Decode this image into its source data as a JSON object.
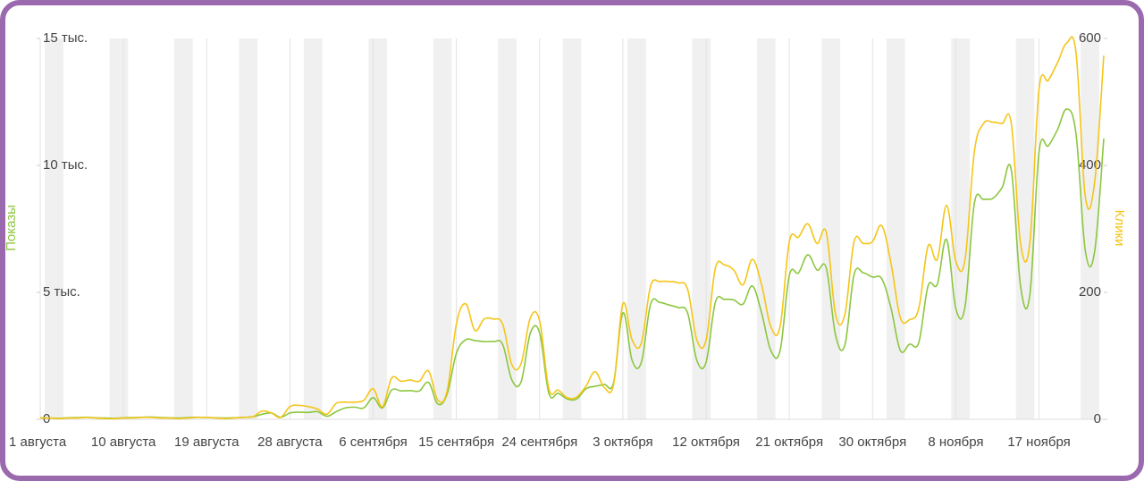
{
  "chart_data": {
    "type": "line",
    "categories": [
      "1 августа",
      null,
      null,
      null,
      null,
      null,
      null,
      null,
      null,
      "10 августа",
      null,
      null,
      null,
      null,
      null,
      null,
      null,
      null,
      "19 августа",
      null,
      null,
      null,
      null,
      null,
      null,
      null,
      null,
      "28 августа",
      null,
      null,
      null,
      null,
      null,
      null,
      null,
      null,
      "6 сентября",
      null,
      null,
      null,
      null,
      null,
      null,
      null,
      null,
      "15 сентября",
      null,
      null,
      null,
      null,
      null,
      null,
      null,
      null,
      "24 сентября",
      null,
      null,
      null,
      null,
      null,
      null,
      null,
      null,
      "3 октября",
      null,
      null,
      null,
      null,
      null,
      null,
      null,
      null,
      "12 октября",
      null,
      null,
      null,
      null,
      null,
      null,
      null,
      null,
      "21 октября",
      null,
      null,
      null,
      null,
      null,
      null,
      null,
      null,
      "30 октября",
      null,
      null,
      null,
      null,
      null,
      null,
      null,
      null,
      "8 ноября",
      null,
      null,
      null,
      null,
      null,
      null,
      null,
      null,
      "17 ноября",
      null,
      null,
      null,
      null,
      null,
      null,
      null
    ],
    "series": [
      {
        "name": "Показы",
        "color": "#8cc63f",
        "axis": "y",
        "values": [
          60,
          50,
          40,
          60,
          70,
          80,
          60,
          50,
          40,
          60,
          70,
          80,
          90,
          70,
          60,
          50,
          70,
          80,
          70,
          60,
          50,
          60,
          80,
          100,
          200,
          250,
          80,
          250,
          280,
          270,
          300,
          120,
          300,
          450,
          480,
          450,
          850,
          450,
          1150,
          1120,
          1130,
          1120,
          1450,
          600,
          1000,
          2600,
          3130,
          3100,
          3060,
          3060,
          2950,
          1550,
          1480,
          3400,
          3400,
          1020,
          1020,
          800,
          800,
          1200,
          1300,
          1370,
          1450,
          4190,
          2320,
          2250,
          4540,
          4600,
          4500,
          4400,
          4190,
          2320,
          2250,
          4610,
          4720,
          4700,
          4540,
          5250,
          4190,
          2710,
          2710,
          5670,
          5770,
          6480,
          5880,
          5950,
          3310,
          2920,
          5700,
          5770,
          5600,
          5530,
          4370,
          2710,
          2960,
          3030,
          5250,
          5320,
          7080,
          4370,
          4440,
          8490,
          8660,
          8700,
          9120,
          9820,
          5250,
          4890,
          10530,
          10770,
          11410,
          12220,
          11230,
          6650,
          6580,
          11060
        ]
      },
      {
        "name": "Клики",
        "color": "#f5c518",
        "axis": "y2",
        "values": [
          2,
          2,
          1,
          2,
          2,
          3,
          2,
          1,
          1,
          2,
          2,
          3,
          3,
          2,
          2,
          1,
          2,
          3,
          3,
          2,
          1,
          2,
          3,
          4,
          13,
          10,
          3,
          20,
          22,
          20,
          16,
          8,
          25,
          27,
          27,
          30,
          48,
          20,
          65,
          60,
          62,
          60,
          76,
          30,
          45,
          150,
          182,
          140,
          158,
          158,
          150,
          86,
          88,
          160,
          155,
          48,
          46,
          34,
          35,
          52,
          75,
          50,
          55,
          182,
          125,
          120,
          210,
          217,
          217,
          215,
          205,
          125,
          125,
          238,
          243,
          235,
          212,
          252,
          212,
          146,
          146,
          280,
          287,
          308,
          277,
          294,
          165,
          165,
          280,
          277,
          280,
          305,
          245,
          160,
          157,
          175,
          273,
          252,
          337,
          249,
          252,
          421,
          466,
          468,
          466,
          466,
          277,
          277,
          520,
          534,
          562,
          593,
          577,
          351,
          372,
          573
        ]
      }
    ],
    "ylim": [
      0,
      15000
    ],
    "yticks": [
      0,
      {
        "value": 5000,
        "label": "5 тыс."
      },
      {
        "value": 10000,
        "label": "10 тыс."
      },
      {
        "value": 15000,
        "label": "15 тыс."
      }
    ],
    "y2lim": [
      0,
      600
    ],
    "y2ticks": [
      0,
      200,
      400,
      600
    ],
    "grid": true
  }
}
